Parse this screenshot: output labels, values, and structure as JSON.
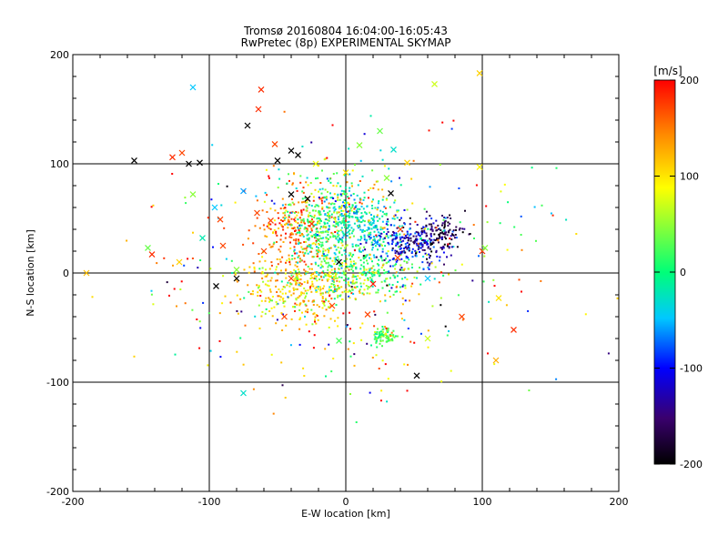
{
  "chart_data": {
    "type": "scatter",
    "title": "Tromsø 20160804 16:04:00-16:05:43",
    "subtitle": "RwPretec (8p) EXPERIMENTAL SKYMAP",
    "xlabel": "E-W location [km]",
    "ylabel": "N-S location [km]",
    "xlim": [
      -200,
      200
    ],
    "ylim": [
      -200,
      200
    ],
    "x_ticks": [
      "-200",
      "-100",
      "0",
      "100",
      "200"
    ],
    "y_ticks": [
      "-200",
      "-100",
      "0",
      "100",
      "200"
    ],
    "grid": "lines at -100, 0, 100 on both axes",
    "marker_types": [
      "dot",
      "x"
    ],
    "colorbar": {
      "label": "[m/s]",
      "range": [
        -200,
        200
      ],
      "ticks": [
        "200",
        "100",
        "0",
        "-100",
        "-200"
      ],
      "colors": [
        "#000000",
        "#3a006e",
        "#0000ff",
        "#00c8ff",
        "#00ff78",
        "#ffff00",
        "#ff8800",
        "#ff0000"
      ]
    },
    "clusters": [
      {
        "x": -35,
        "y": 38,
        "sx": 14,
        "sy": 18,
        "v": 150,
        "vs": 30,
        "n": 220
      },
      {
        "x": -30,
        "y": -15,
        "sx": 22,
        "sy": 16,
        "v": 95,
        "vs": 35,
        "n": 330
      },
      {
        "x": -15,
        "y": 45,
        "sx": 14,
        "sy": 15,
        "v": 10,
        "vs": 35,
        "n": 260
      },
      {
        "x": 15,
        "y": 42,
        "sx": 12,
        "sy": 14,
        "v": -30,
        "vs": 25,
        "n": 220
      },
      {
        "x": 10,
        "y": 2,
        "sx": 22,
        "sy": 12,
        "v": 20,
        "vs": 45,
        "n": 320
      },
      {
        "x": 45,
        "y": 25,
        "sx": 12,
        "sy": 10,
        "v": -110,
        "vs": 35,
        "n": 220
      },
      {
        "x": 68,
        "y": 35,
        "sx": 10,
        "sy": 9,
        "v": -165,
        "vs": 25,
        "n": 120
      },
      {
        "x": 28,
        "y": -58,
        "sx": 4,
        "sy": 4,
        "v": 25,
        "vs": 20,
        "n": 90
      },
      {
        "x": -5,
        "y": 70,
        "sx": 25,
        "sy": 15,
        "v": 40,
        "vs": 80,
        "n": 140
      },
      {
        "x": 0,
        "y": 0,
        "sx": 70,
        "sy": 55,
        "v": 60,
        "vs": 110,
        "n": 380
      }
    ],
    "crosses": [
      [
        -62,
        168,
        180
      ],
      [
        -64,
        150,
        180
      ],
      [
        -72,
        135,
        -200
      ],
      [
        -155,
        103,
        -200
      ],
      [
        -127,
        106,
        180
      ],
      [
        -115,
        100,
        -200
      ],
      [
        -107,
        101,
        -200
      ],
      [
        -112,
        170,
        -50
      ],
      [
        -120,
        110,
        170
      ],
      [
        -50,
        103,
        -200
      ],
      [
        -40,
        112,
        -200
      ],
      [
        -35,
        108,
        -200
      ],
      [
        -52,
        118,
        170
      ],
      [
        10,
        117,
        40
      ],
      [
        25,
        130,
        30
      ],
      [
        35,
        113,
        -30
      ],
      [
        65,
        173,
        60
      ],
      [
        98,
        183,
        100
      ],
      [
        -142,
        17,
        180
      ],
      [
        -145,
        23,
        30
      ],
      [
        -122,
        10,
        100
      ],
      [
        -112,
        72,
        40
      ],
      [
        -96,
        60,
        -50
      ],
      [
        -92,
        49,
        170
      ],
      [
        -90,
        25,
        170
      ],
      [
        -75,
        75,
        -60
      ],
      [
        -65,
        55,
        170
      ],
      [
        -55,
        48,
        170
      ],
      [
        -40,
        72,
        -200
      ],
      [
        -28,
        68,
        -200
      ],
      [
        33,
        73,
        -200
      ],
      [
        -25,
        45,
        180
      ],
      [
        -60,
        20,
        170
      ],
      [
        -45,
        -40,
        170
      ],
      [
        -80,
        -5,
        -200
      ],
      [
        -95,
        -12,
        -200
      ],
      [
        -75,
        -110,
        -30
      ],
      [
        52,
        -94,
        -200
      ],
      [
        60,
        -60,
        60
      ],
      [
        -10,
        -30,
        170
      ],
      [
        20,
        -10,
        190
      ],
      [
        16,
        -38,
        170
      ],
      [
        112,
        -23,
        90
      ],
      [
        123,
        -52,
        180
      ],
      [
        110,
        -80,
        120
      ],
      [
        100,
        20,
        180
      ],
      [
        102,
        23,
        40
      ],
      [
        85,
        -40,
        170
      ],
      [
        -5,
        -62,
        20
      ],
      [
        -190,
        0,
        110
      ],
      [
        98,
        97,
        80
      ],
      [
        -22,
        100,
        70
      ],
      [
        0,
        92,
        90
      ],
      [
        45,
        101,
        100
      ],
      [
        30,
        87,
        40
      ],
      [
        40,
        40,
        170
      ],
      [
        22,
        28,
        -60
      ],
      [
        60,
        -5,
        -50
      ],
      [
        -40,
        -5,
        170
      ],
      [
        -20,
        30,
        20
      ],
      [
        -105,
        32,
        -20
      ],
      [
        -80,
        3,
        40
      ],
      [
        -5,
        10,
        -200
      ],
      [
        38,
        14,
        170
      ]
    ]
  }
}
